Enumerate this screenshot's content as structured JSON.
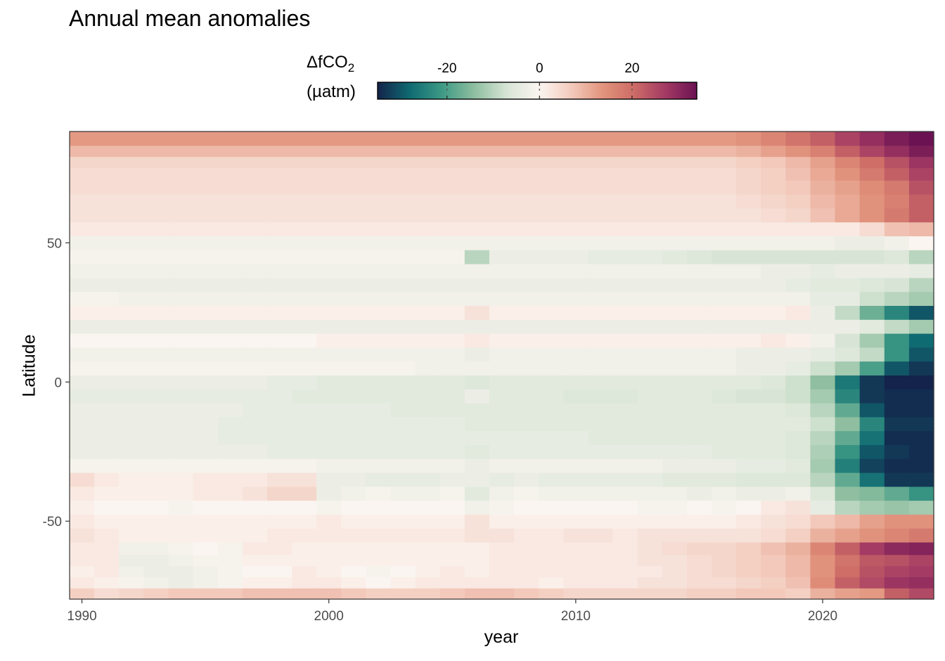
{
  "chart_data": {
    "type": "heatmap",
    "title": "Annual mean anomalies",
    "xlabel": "year",
    "ylabel": "Latitude",
    "legend": {
      "title_main": "ΔfCO",
      "title_sub": "2",
      "unit": "(µatm)",
      "position": "top",
      "ticks": [
        -20,
        0,
        20
      ],
      "tick_labels": [
        "-20",
        "0",
        "20"
      ],
      "range": [
        -35,
        34
      ],
      "colors": [
        "#14234b",
        "#0f6b72",
        "#3e9a85",
        "#8fbfa0",
        "#d8e5d6",
        "#fbf5f1",
        "#f3cbbd",
        "#e2947d",
        "#cd6c66",
        "#a33a64",
        "#6b1253"
      ]
    },
    "xlim": [
      1989.5,
      2024.5
    ],
    "ylim": [
      -78,
      90
    ],
    "x_ticks": [
      1990,
      2000,
      2010,
      2020
    ],
    "x_tick_labels": [
      "1990",
      "2000",
      "2010",
      "2020"
    ],
    "y_ticks": [
      -50,
      0,
      50
    ],
    "y_tick_labels": [
      "-50",
      "0",
      "50"
    ],
    "years": [
      1990,
      1991,
      1992,
      1993,
      1994,
      1995,
      1996,
      1997,
      1998,
      1999,
      2000,
      2001,
      2002,
      2003,
      2004,
      2005,
      2006,
      2007,
      2008,
      2009,
      2010,
      2011,
      2012,
      2013,
      2014,
      2015,
      2016,
      2017,
      2018,
      2019,
      2020,
      2021,
      2022,
      2023,
      2024
    ],
    "latitude_bands": [
      -76,
      -72,
      -68,
      -64,
      -60,
      -55,
      -50,
      -45,
      -40,
      -35,
      -30,
      -25,
      -20,
      -15,
      -10,
      -5,
      0,
      5,
      10,
      15,
      20,
      25,
      30,
      35,
      40,
      45,
      50,
      55,
      60,
      65,
      70,
      75,
      79,
      83,
      87
    ],
    "values": [
      [
        6,
        4,
        5,
        6,
        7,
        7,
        7,
        8,
        8,
        8,
        8,
        7,
        6,
        6,
        6,
        7,
        8,
        8,
        7,
        6,
        5,
        5,
        5,
        5,
        5,
        6,
        6,
        7,
        7,
        6,
        10,
        12,
        13,
        22,
        25
      ],
      [
        2,
        1,
        -1,
        -2,
        -3,
        -2,
        -1,
        1,
        1,
        2,
        2,
        1,
        0,
        1,
        2,
        2,
        2,
        2,
        2,
        1,
        2,
        2,
        2,
        3,
        3,
        4,
        4,
        5,
        6,
        8,
        15,
        22,
        25,
        28,
        29
      ],
      [
        1,
        2,
        -2,
        -3,
        -3,
        -2,
        -1,
        0,
        0,
        2,
        1,
        0,
        -1,
        0,
        1,
        2,
        1,
        2,
        2,
        2,
        2,
        2,
        2,
        2,
        3,
        4,
        5,
        6,
        7,
        9,
        14,
        20,
        24,
        26,
        27
      ],
      [
        2,
        2,
        -3,
        -3,
        -2,
        -1,
        -1,
        1,
        1,
        1,
        1,
        1,
        1,
        1,
        1,
        1,
        1,
        2,
        2,
        2,
        2,
        2,
        2,
        3,
        3,
        4,
        5,
        6,
        7,
        9,
        14,
        19,
        23,
        24,
        26
      ],
      [
        2,
        2,
        -2,
        -2,
        -1,
        0,
        -1,
        2,
        2,
        1,
        1,
        1,
        1,
        1,
        1,
        1,
        1,
        2,
        2,
        2,
        2,
        2,
        2,
        3,
        4,
        5,
        5,
        6,
        8,
        10,
        16,
        22,
        27,
        30,
        31
      ],
      [
        3,
        2,
        1,
        1,
        1,
        1,
        1,
        1,
        2,
        2,
        2,
        2,
        2,
        2,
        2,
        2,
        3,
        3,
        2,
        2,
        3,
        3,
        2,
        3,
        3,
        3,
        3,
        3,
        4,
        6,
        10,
        12,
        14,
        16,
        18
      ],
      [
        2,
        1,
        1,
        1,
        1,
        1,
        1,
        1,
        1,
        1,
        2,
        1,
        1,
        1,
        1,
        1,
        3,
        1,
        1,
        1,
        1,
        1,
        1,
        1,
        1,
        1,
        1,
        2,
        3,
        4,
        7,
        9,
        12,
        14,
        14
      ],
      [
        1,
        0,
        0,
        0,
        -1,
        0,
        0,
        0,
        0,
        0,
        -1,
        0,
        0,
        0,
        0,
        0,
        -2,
        -1,
        0,
        0,
        0,
        0,
        0,
        -1,
        -1,
        0,
        -1,
        0,
        2,
        3,
        -4,
        -10,
        -12,
        -13,
        -12
      ],
      [
        2,
        1,
        1,
        1,
        1,
        2,
        2,
        3,
        5,
        5,
        -3,
        -2,
        -1,
        -2,
        -2,
        -1,
        -5,
        -2,
        -1,
        -2,
        -2,
        -2,
        -2,
        -2,
        -2,
        -3,
        -2,
        -3,
        -3,
        -2,
        -6,
        -14,
        -15,
        -18,
        -22
      ],
      [
        4,
        2,
        1,
        1,
        1,
        2,
        2,
        2,
        3,
        3,
        -3,
        -3,
        -4,
        -4,
        -4,
        -3,
        -3,
        -4,
        -3,
        -4,
        -4,
        -4,
        -4,
        -4,
        -5,
        -5,
        -5,
        -6,
        -6,
        -6,
        -10,
        -18,
        -27,
        -33,
        -33
      ],
      [
        -1,
        -1,
        -1,
        -1,
        -1,
        -1,
        -1,
        -1,
        -1,
        -1,
        -2,
        -2,
        -2,
        -2,
        -2,
        -2,
        -3,
        -2,
        -2,
        -2,
        -2,
        -2,
        -2,
        -2,
        -3,
        -3,
        -3,
        -4,
        -4,
        -5,
        -12,
        -25,
        -32,
        -34,
        -34
      ],
      [
        -3,
        -3,
        -3,
        -3,
        -3,
        -3,
        -3,
        -3,
        -4,
        -4,
        -4,
        -4,
        -4,
        -4,
        -4,
        -4,
        -5,
        -4,
        -4,
        -4,
        -4,
        -4,
        -4,
        -4,
        -4,
        -4,
        -5,
        -5,
        -5,
        -6,
        -11,
        -22,
        -30,
        -33,
        -34
      ],
      [
        -3,
        -3,
        -3,
        -3,
        -3,
        -3,
        -4,
        -4,
        -4,
        -4,
        -4,
        -4,
        -4,
        -4,
        -4,
        -4,
        -4,
        -4,
        -4,
        -4,
        -4,
        -5,
        -5,
        -5,
        -5,
        -5,
        -5,
        -5,
        -5,
        -6,
        -10,
        -18,
        -27,
        -34,
        -34
      ],
      [
        -3,
        -3,
        -3,
        -3,
        -3,
        -3,
        -4,
        -4,
        -4,
        -4,
        -4,
        -4,
        -4,
        -4,
        -4,
        -4,
        -5,
        -5,
        -5,
        -5,
        -5,
        -5,
        -5,
        -5,
        -5,
        -5,
        -5,
        -5,
        -5,
        -5,
        -8,
        -14,
        -24,
        -33,
        -33
      ],
      [
        -3,
        -3,
        -3,
        -3,
        -3,
        -3,
        -3,
        -4,
        -4,
        -4,
        -4,
        -4,
        -4,
        -5,
        -5,
        -5,
        -5,
        -5,
        -5,
        -5,
        -5,
        -5,
        -5,
        -5,
        -5,
        -5,
        -5,
        -5,
        -5,
        -6,
        -10,
        -18,
        -30,
        -34,
        -34
      ],
      [
        -4,
        -4,
        -4,
        -4,
        -4,
        -4,
        -4,
        -4,
        -4,
        -5,
        -5,
        -5,
        -5,
        -5,
        -5,
        -5,
        -3,
        -5,
        -5,
        -5,
        -6,
        -6,
        -6,
        -5,
        -5,
        -5,
        -6,
        -7,
        -7,
        -8,
        -12,
        -24,
        -33,
        -34,
        -34
      ],
      [
        -3,
        -3,
        -3,
        -3,
        -3,
        -3,
        -3,
        -3,
        -4,
        -4,
        -5,
        -5,
        -5,
        -5,
        -5,
        -5,
        -6,
        -5,
        -5,
        -5,
        -5,
        -5,
        -5,
        -5,
        -5,
        -5,
        -5,
        -5,
        -6,
        -8,
        -14,
        -26,
        -33,
        -35,
        -35
      ],
      [
        -1,
        -1,
        -1,
        -1,
        -1,
        -1,
        -1,
        -1,
        -1,
        -1,
        -1,
        -1,
        -1,
        -1,
        -2,
        -2,
        -2,
        -2,
        -2,
        -2,
        -2,
        -2,
        -2,
        -2,
        -2,
        -2,
        -2,
        -3,
        -3,
        -4,
        -8,
        -12,
        -20,
        -30,
        -33
      ],
      [
        -2,
        -2,
        -2,
        -2,
        -2,
        -2,
        -2,
        -2,
        -2,
        -2,
        -2,
        -2,
        -2,
        -2,
        -2,
        -2,
        -3,
        -2,
        -2,
        -2,
        -2,
        -2,
        -2,
        -2,
        -2,
        -2,
        -2,
        -3,
        -3,
        -3,
        -4,
        -6,
        -9,
        -22,
        -30
      ],
      [
        0,
        0,
        0,
        0,
        0,
        0,
        0,
        0,
        0,
        0,
        1,
        1,
        1,
        1,
        1,
        1,
        2,
        1,
        1,
        1,
        1,
        1,
        1,
        1,
        1,
        1,
        1,
        1,
        2,
        1,
        -2,
        -7,
        -12,
        -22,
        -28
      ],
      [
        -3,
        -3,
        -3,
        -3,
        -3,
        -3,
        -3,
        -3,
        -3,
        -3,
        -3,
        -3,
        -3,
        -3,
        -3,
        -3,
        -3,
        -3,
        -3,
        -3,
        -3,
        -3,
        -3,
        -3,
        -3,
        -3,
        -3,
        -3,
        -3,
        -3,
        -3,
        -3,
        -5,
        -9,
        -12
      ],
      [
        1,
        1,
        1,
        1,
        1,
        1,
        1,
        1,
        1,
        1,
        1,
        1,
        1,
        1,
        1,
        1,
        3,
        1,
        1,
        1,
        1,
        1,
        1,
        1,
        1,
        1,
        1,
        1,
        1,
        2,
        -3,
        -9,
        -17,
        -24,
        -30
      ],
      [
        -1,
        -1,
        -2,
        -2,
        -2,
        -2,
        -2,
        -2,
        -2,
        -2,
        -2,
        -2,
        -2,
        -2,
        -2,
        -2,
        -2,
        -2,
        -2,
        -2,
        -2,
        -2,
        -2,
        -2,
        -2,
        -2,
        -2,
        -2,
        -2,
        -2,
        -4,
        -4,
        -8,
        -10,
        -12
      ],
      [
        -3,
        -3,
        -3,
        -3,
        -3,
        -3,
        -3,
        -3,
        -3,
        -3,
        -3,
        -3,
        -3,
        -3,
        -3,
        -3,
        -3,
        -3,
        -3,
        -3,
        -3,
        -3,
        -3,
        -3,
        -3,
        -3,
        -3,
        -3,
        -3,
        -4,
        -5,
        -5,
        -6,
        -7,
        -10
      ],
      [
        -2,
        -2,
        -2,
        -2,
        -2,
        -2,
        -2,
        -2,
        -2,
        -2,
        -2,
        -2,
        -2,
        -2,
        -2,
        -2,
        -2,
        -2,
        -2,
        -2,
        -2,
        -2,
        -2,
        -2,
        -2,
        -2,
        -2,
        -2,
        -3,
        -3,
        -4,
        -3,
        -3,
        -3,
        -4
      ],
      [
        -1,
        -1,
        -1,
        -1,
        -1,
        -1,
        -1,
        -1,
        -1,
        -1,
        -1,
        -1,
        -1,
        -1,
        -1,
        -1,
        -10,
        -3,
        -3,
        -3,
        -3,
        -4,
        -4,
        -4,
        -5,
        -6,
        -7,
        -7,
        -7,
        -7,
        -7,
        -7,
        -7,
        -6,
        -10
      ],
      [
        -2,
        -2,
        -2,
        -2,
        -2,
        -2,
        -2,
        -2,
        -2,
        -2,
        -2,
        -2,
        -2,
        -2,
        -2,
        -2,
        -2,
        -2,
        -2,
        -2,
        -2,
        -2,
        -2,
        -2,
        -2,
        -2,
        -2,
        -2,
        -2,
        -2,
        -2,
        -3,
        -3,
        -2,
        0
      ],
      [
        2,
        2,
        2,
        2,
        2,
        2,
        2,
        2,
        2,
        2,
        2,
        2,
        2,
        2,
        2,
        2,
        2,
        2,
        2,
        2,
        2,
        2,
        2,
        2,
        2,
        2,
        2,
        2,
        2,
        2,
        2,
        2,
        4,
        8,
        9
      ],
      [
        3,
        3,
        3,
        3,
        3,
        3,
        3,
        3,
        3,
        3,
        3,
        3,
        3,
        3,
        3,
        3,
        3,
        3,
        3,
        3,
        3,
        3,
        3,
        3,
        3,
        3,
        3,
        3,
        4,
        5,
        8,
        11,
        14,
        18,
        22
      ],
      [
        3,
        3,
        3,
        3,
        3,
        3,
        3,
        3,
        3,
        3,
        3,
        3,
        3,
        3,
        3,
        3,
        3,
        3,
        3,
        3,
        3,
        3,
        3,
        3,
        3,
        3,
        3,
        4,
        5,
        6,
        9,
        11,
        14,
        17,
        22
      ],
      [
        4,
        4,
        4,
        4,
        4,
        4,
        4,
        4,
        4,
        4,
        4,
        4,
        4,
        4,
        4,
        4,
        4,
        4,
        4,
        4,
        4,
        4,
        4,
        4,
        4,
        4,
        4,
        5,
        6,
        7,
        10,
        12,
        15,
        18,
        24
      ],
      [
        4,
        4,
        4,
        4,
        4,
        4,
        4,
        4,
        4,
        4,
        4,
        4,
        4,
        4,
        4,
        4,
        4,
        4,
        4,
        4,
        4,
        4,
        4,
        4,
        4,
        4,
        4,
        5,
        6,
        8,
        11,
        14,
        18,
        22,
        26
      ],
      [
        5,
        5,
        5,
        5,
        5,
        5,
        5,
        5,
        5,
        5,
        5,
        5,
        5,
        5,
        5,
        5,
        5,
        5,
        5,
        5,
        5,
        5,
        5,
        5,
        5,
        5,
        5,
        6,
        7,
        9,
        12,
        16,
        20,
        24,
        28
      ],
      [
        9,
        9,
        9,
        9,
        9,
        9,
        9,
        9,
        9,
        9,
        9,
        9,
        9,
        9,
        9,
        9,
        9,
        9,
        9,
        9,
        9,
        9,
        9,
        9,
        9,
        9,
        9,
        10,
        12,
        14,
        17,
        22,
        26,
        29,
        32
      ],
      [
        13,
        13,
        13,
        13,
        13,
        13,
        13,
        13,
        13,
        13,
        13,
        13,
        13,
        13,
        13,
        13,
        13,
        13,
        13,
        13,
        13,
        13,
        13,
        13,
        13,
        13,
        13,
        14,
        16,
        19,
        22,
        26,
        29,
        32,
        34
      ]
    ]
  }
}
